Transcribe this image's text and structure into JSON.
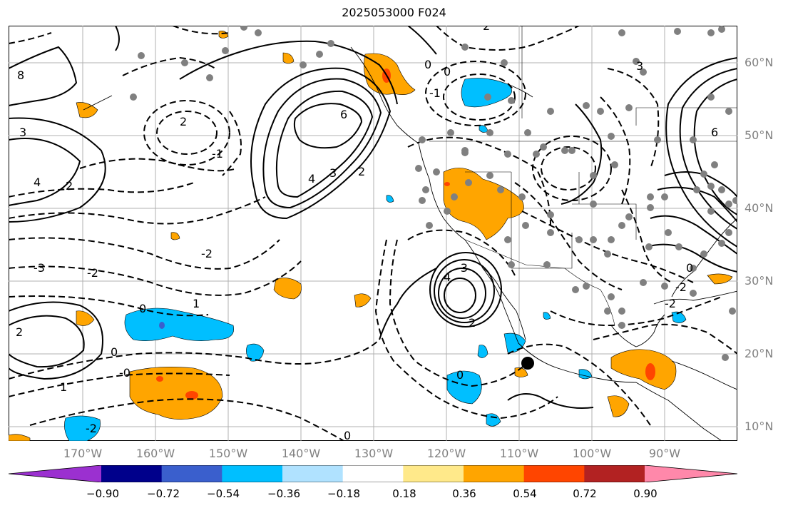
{
  "title": "2025053000 F024",
  "lat_labels": [
    "60°N",
    "50°N",
    "40°N",
    "30°N",
    "20°N",
    "10°N"
  ],
  "lon_labels": [
    "170°W",
    "160°W",
    "150°W",
    "140°W",
    "130°W",
    "120°W",
    "110°W",
    "100°W",
    "90°W"
  ],
  "colorbar": {
    "colors": [
      "#9b30d0",
      "#00008b",
      "#3a5fcd",
      "#00bfff",
      "#b0e2ff",
      "#ffffff",
      "#ffe98a",
      "#ffa500",
      "#ff4500",
      "#b22222",
      "#ff88aa"
    ],
    "labels": [
      "−0.90",
      "−0.72",
      "−0.54",
      "−0.36",
      "−0.18",
      "0.18",
      "0.36",
      "0.54",
      "0.72",
      "0.90"
    ]
  },
  "contour_labels": [
    "0",
    "2",
    "3",
    "4",
    "6",
    "-1",
    "-2",
    "-3",
    "1",
    "2",
    "0",
    "-2",
    "0",
    "1",
    "0",
    "2",
    "-2",
    "-3",
    "2",
    "0",
    "-0",
    "-1",
    "-2",
    "0",
    "4",
    "3",
    "2",
    "0",
    "2",
    "-2",
    "6",
    "4",
    "8",
    "3"
  ]
}
